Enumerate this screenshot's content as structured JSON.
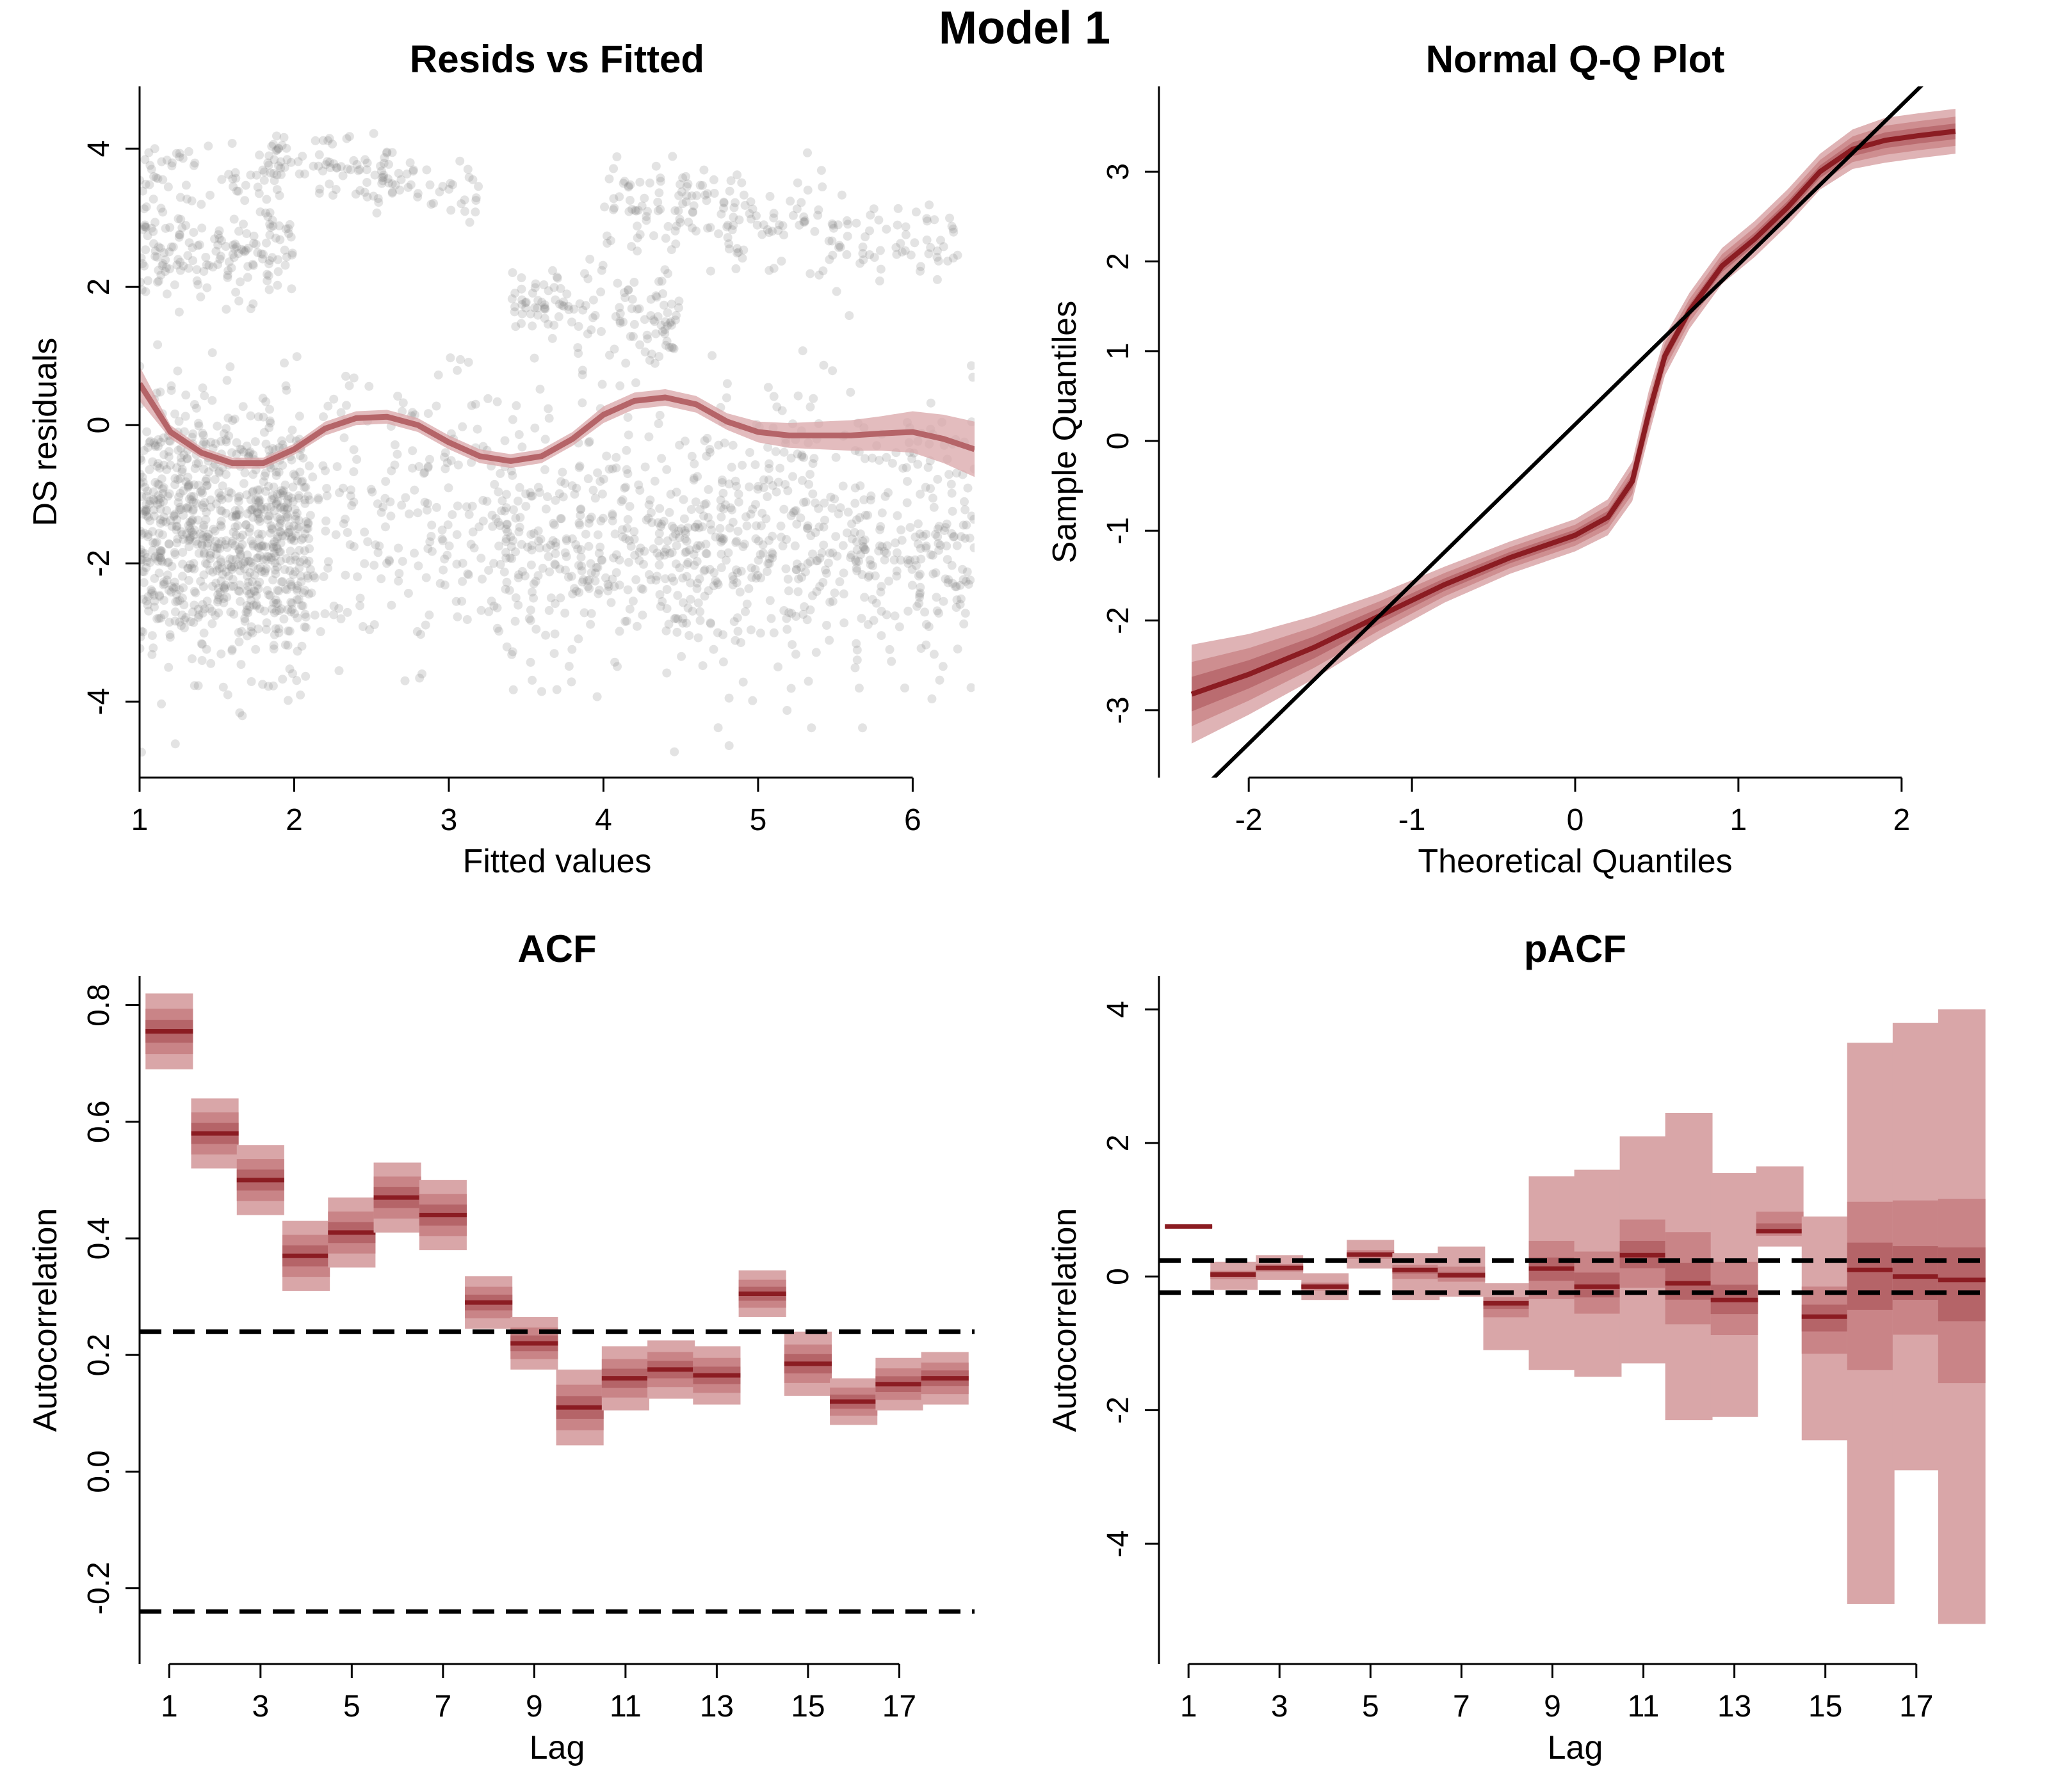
{
  "figure": {
    "title": "Model 1"
  },
  "colors": {
    "band_outer": "#d9a6a8",
    "band_mid": "#c98487",
    "band_inner": "#b56468",
    "line": "#8b1c22",
    "points": "#7f7f7f",
    "axis": "#000000"
  },
  "chart_data": [
    {
      "type": "scatter",
      "title": "Resids vs Fitted",
      "xlabel": "Fitted values",
      "ylabel": "DS residuals",
      "xlim": [
        1,
        6.4
      ],
      "ylim": [
        -5.1,
        4.9
      ],
      "xticks": [
        1,
        2,
        3,
        4,
        5,
        6
      ],
      "yticks": [
        -4,
        -2,
        0,
        2,
        4
      ],
      "point_clusters": [
        {
          "x_range": [
            1.0,
            2.1
          ],
          "y_center": -1.6,
          "spread": 0.9,
          "count": 700
        },
        {
          "x_range": [
            1.0,
            6.4
          ],
          "y_center": -1.5,
          "spread": 1.1,
          "count": 900
        },
        {
          "x_range": [
            1.0,
            2.0
          ],
          "y_center": 2.5,
          "spread": 0.35,
          "count": 160
        },
        {
          "x_range": [
            1.0,
            1.9
          ],
          "y_center": 3.6,
          "spread": 0.3,
          "count": 60
        },
        {
          "x_range": [
            1.8,
            3.2
          ],
          "y_center": 3.6,
          "spread": 0.25,
          "count": 120
        },
        {
          "x_range": [
            3.4,
            4.5
          ],
          "y_center": 1.6,
          "spread": 0.3,
          "count": 130
        },
        {
          "x_range": [
            4.0,
            6.3
          ],
          "y_center": 2.9,
          "spread": 0.35,
          "count": 220
        },
        {
          "x_range": [
            3.2,
            6.4
          ],
          "y_center": -1.9,
          "spread": 0.6,
          "count": 380
        }
      ],
      "smooth": {
        "x": [
          1.0,
          1.2,
          1.4,
          1.6,
          1.8,
          2.0,
          2.2,
          2.4,
          2.6,
          2.8,
          3.0,
          3.2,
          3.4,
          3.6,
          3.8,
          4.0,
          4.2,
          4.4,
          4.6,
          4.8,
          5.0,
          5.2,
          5.4,
          5.6,
          5.8,
          6.0,
          6.2,
          6.4
        ],
        "y": [
          0.6,
          -0.1,
          -0.4,
          -0.55,
          -0.55,
          -0.35,
          -0.05,
          0.1,
          0.12,
          0.0,
          -0.25,
          -0.45,
          -0.52,
          -0.45,
          -0.2,
          0.15,
          0.35,
          0.4,
          0.3,
          0.05,
          -0.1,
          -0.15,
          -0.15,
          -0.15,
          -0.12,
          -0.1,
          -0.2,
          -0.35
        ],
        "halfwidth": [
          0.25,
          0.1,
          0.08,
          0.08,
          0.08,
          0.08,
          0.1,
          0.1,
          0.1,
          0.1,
          0.1,
          0.1,
          0.1,
          0.1,
          0.1,
          0.12,
          0.12,
          0.12,
          0.12,
          0.12,
          0.15,
          0.18,
          0.2,
          0.22,
          0.25,
          0.3,
          0.35,
          0.4
        ]
      }
    },
    {
      "type": "line",
      "title": "Normal Q-Q Plot",
      "xlabel": "Theoretical Quantiles",
      "ylabel": "Sample Quantiles",
      "xlim": [
        -2.55,
        2.55
      ],
      "ylim": [
        -3.75,
        3.95
      ],
      "xticks": [
        -2,
        -1,
        0,
        1,
        2
      ],
      "yticks": [
        -3,
        -2,
        -1,
        0,
        1,
        2,
        3
      ],
      "reference_line": {
        "x": [
          -2.55,
          2.55
        ],
        "y": [
          -4.35,
          4.72
        ]
      },
      "quantile_curve": {
        "x": [
          -2.35,
          -2.0,
          -1.6,
          -1.2,
          -0.8,
          -0.4,
          0.0,
          0.2,
          0.35,
          0.45,
          0.55,
          0.7,
          0.9,
          1.1,
          1.3,
          1.5,
          1.7,
          1.9,
          2.1,
          2.33
        ],
        "y": [
          -2.82,
          -2.6,
          -2.3,
          -1.95,
          -1.6,
          -1.3,
          -1.05,
          -0.85,
          -0.45,
          0.3,
          0.95,
          1.45,
          1.95,
          2.25,
          2.6,
          3.0,
          3.25,
          3.35,
          3.4,
          3.45
        ],
        "halfwidth": [
          0.55,
          0.45,
          0.35,
          0.25,
          0.2,
          0.18,
          0.18,
          0.2,
          0.22,
          0.25,
          0.22,
          0.2,
          0.2,
          0.2,
          0.2,
          0.2,
          0.22,
          0.25,
          0.25,
          0.25
        ]
      }
    },
    {
      "type": "bar",
      "title": "ACF",
      "xlabel": "Lag",
      "ylabel": "Autocorrelation",
      "xlim": [
        0.35,
        18.65
      ],
      "ylim": [
        -0.33,
        0.85
      ],
      "xticks": [
        1,
        3,
        5,
        7,
        9,
        11,
        13,
        15,
        17
      ],
      "yticks": [
        -0.2,
        0.0,
        0.2,
        0.4,
        0.6,
        0.8
      ],
      "yticklabels": [
        "-0.2",
        "0.0",
        "0.2",
        "0.4",
        "0.6",
        "0.8"
      ],
      "conf_bounds": [
        0.24,
        -0.24
      ],
      "lags": [
        1,
        2,
        3,
        4,
        5,
        6,
        7,
        8,
        9,
        10,
        11,
        12,
        13,
        14,
        15,
        16,
        17,
        18
      ],
      "values": [
        0.755,
        0.58,
        0.5,
        0.37,
        0.41,
        0.47,
        0.44,
        0.29,
        0.22,
        0.11,
        0.16,
        0.175,
        0.165,
        0.305,
        0.185,
        0.12,
        0.15,
        0.16
      ],
      "halfwidth": [
        0.065,
        0.06,
        0.06,
        0.06,
        0.06,
        0.06,
        0.06,
        0.045,
        0.045,
        0.065,
        0.055,
        0.05,
        0.05,
        0.04,
        0.055,
        0.04,
        0.045,
        0.045
      ]
    },
    {
      "type": "bar",
      "title": "pACF",
      "xlabel": "Lag",
      "ylabel": "Autocorrelation",
      "xlim": [
        0.35,
        18.65
      ],
      "ylim": [
        -5.8,
        4.5
      ],
      "xticks": [
        1,
        3,
        5,
        7,
        9,
        11,
        13,
        15,
        17
      ],
      "yticks": [
        -4,
        -2,
        0,
        2,
        4
      ],
      "conf_bounds": [
        0.24,
        -0.24
      ],
      "lags": [
        1,
        2,
        3,
        4,
        5,
        6,
        7,
        8,
        9,
        10,
        11,
        12,
        13,
        14,
        15,
        16,
        17,
        18
      ],
      "values": [
        0.75,
        0.03,
        0.13,
        -0.15,
        0.33,
        0.1,
        0.02,
        -0.4,
        0.12,
        -0.15,
        0.32,
        -0.1,
        -0.35,
        0.68,
        -0.6,
        0.1,
        0.0,
        -0.05
      ],
      "upper": [
        0.78,
        0.22,
        0.32,
        0.05,
        0.55,
        0.35,
        0.45,
        -0.1,
        1.5,
        1.6,
        2.1,
        2.45,
        1.55,
        1.65,
        0.9,
        3.5,
        3.8,
        4.0
      ],
      "lower": [
        0.72,
        -0.2,
        -0.05,
        -0.35,
        0.12,
        -0.35,
        -0.3,
        -1.1,
        -1.4,
        -1.5,
        -1.3,
        -2.15,
        -2.1,
        0.45,
        -2.45,
        -4.9,
        -2.9,
        -5.2
      ],
      "gap": [
        null,
        null,
        null,
        null,
        null,
        null,
        null,
        null,
        null,
        null,
        null,
        null,
        null,
        null,
        null,
        null,
        [
          -2.9,
          -4.9
        ],
        null
      ]
    }
  ]
}
